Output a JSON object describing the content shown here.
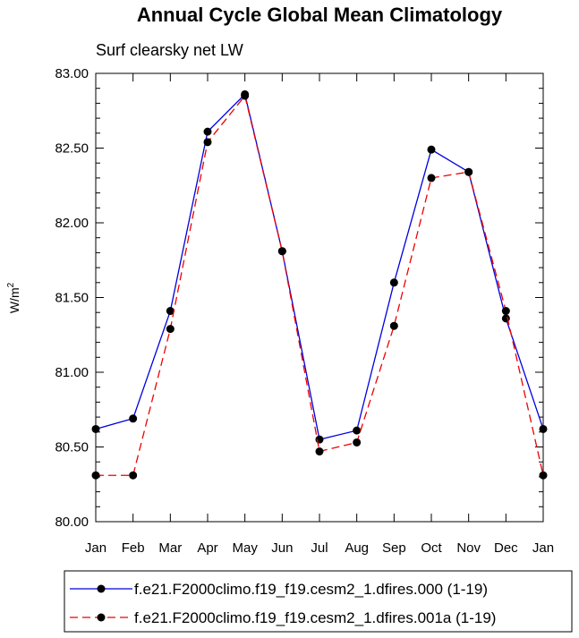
{
  "chart_data": {
    "type": "line",
    "title": "Annual Cycle Global Mean Climatology",
    "subtitle": "Surf clearsky net LW",
    "ylabel": "W/m",
    "ylabel_superscript": "2",
    "xlabel": "",
    "ylim": [
      80.0,
      83.0
    ],
    "yticks": [
      "80.00",
      "80.50",
      "81.00",
      "81.50",
      "82.00",
      "82.50",
      "83.00"
    ],
    "categories": [
      "Jan",
      "Feb",
      "Mar",
      "Apr",
      "May",
      "Jun",
      "Jul",
      "Aug",
      "Sep",
      "Oct",
      "Nov",
      "Dec",
      "Jan"
    ],
    "grid": false,
    "legend_position": "bottom",
    "series": [
      {
        "name": "f.e21.F2000climo.f19_f19.cesm2_1.dfires.000 (1-19)",
        "color": "#0000dd",
        "dash": "solid",
        "values": [
          80.62,
          80.69,
          81.41,
          82.61,
          82.86,
          81.81,
          80.55,
          80.61,
          81.6,
          82.49,
          82.34,
          81.36,
          80.62
        ]
      },
      {
        "name": "f.e21.F2000climo.f19_f19.cesm2_1.dfires.001a (1-19)",
        "color": "#ee0000",
        "dash": "dashed",
        "values": [
          80.31,
          80.31,
          81.29,
          82.54,
          82.85,
          81.81,
          80.47,
          80.53,
          81.31,
          82.3,
          82.34,
          81.41,
          80.31
        ]
      }
    ]
  }
}
